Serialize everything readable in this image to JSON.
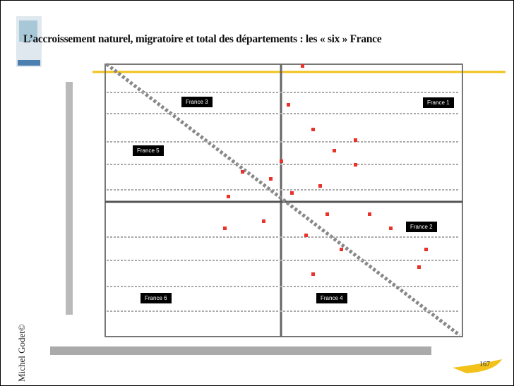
{
  "slide": {
    "title": "L’accroissement naturel, migratoire et total des départements : les « six » France",
    "author": "Michel Godet©",
    "page_number": "167",
    "regions": [
      {
        "label": "France 1"
      },
      {
        "label": "France 2"
      },
      {
        "label": "France 3"
      },
      {
        "label": "France 4"
      },
      {
        "label": "France 5"
      },
      {
        "label": "France 6"
      }
    ]
  }
}
